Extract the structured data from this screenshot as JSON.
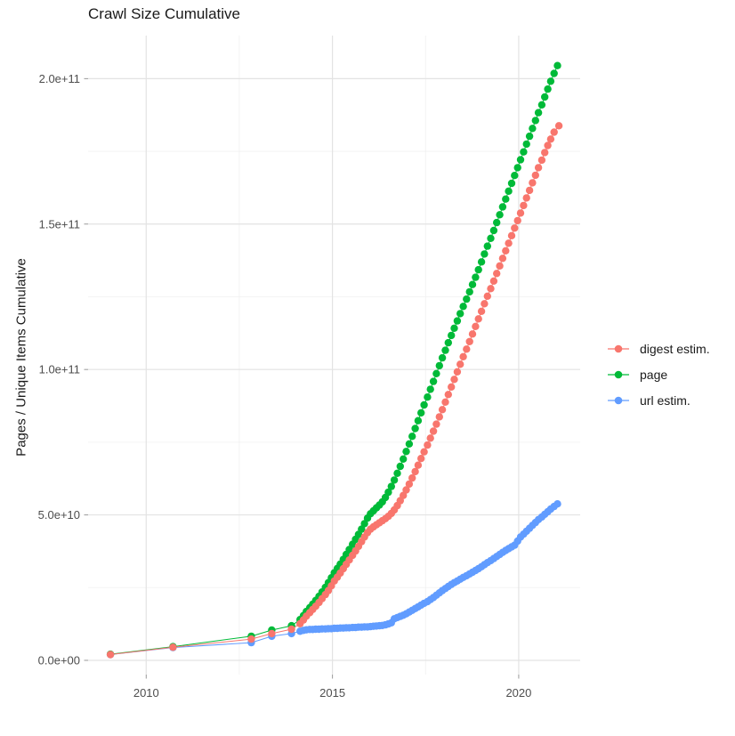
{
  "title": "Crawl Size Cumulative",
  "axes": {
    "y_label": "Pages / Unique Items Cumulative",
    "x_tick_labels": [
      "2010",
      "2015",
      "2020"
    ],
    "y_tick_labels": [
      "0.0e+00",
      "5.0e+10",
      "1.0e+11",
      "1.5e+11",
      "2.0e+11"
    ]
  },
  "legend": [
    {
      "label": "digest estim.",
      "color": "#F8766D"
    },
    {
      "label": "page",
      "color": "#00BA38"
    },
    {
      "label": "url estim.",
      "color": "#619CFF"
    }
  ],
  "chart_data": {
    "type": "scatter",
    "title": "Crawl Size Cumulative",
    "xlabel": "",
    "ylabel": "Pages / Unique Items Cumulative",
    "legend_position": "right",
    "grid": "on",
    "y_unit": 1000000000.0,
    "xlim": [
      2008.44,
      2021.65
    ],
    "ylim": [
      -4.9,
      214.8
    ],
    "x_major_ticks": [
      {
        "label": "2010",
        "value": 2010
      },
      {
        "label": "2015",
        "value": 2015
      },
      {
        "label": "2020",
        "value": 2020
      }
    ],
    "x_minor_ticks": [
      2012.5,
      2017.5
    ],
    "y_major_ticks": [
      {
        "label": "0.0e+00",
        "value": 0
      },
      {
        "label": "5.0e+10",
        "value": 50
      },
      {
        "label": "1.0e+11",
        "value": 100
      },
      {
        "label": "1.5e+11",
        "value": 150
      },
      {
        "label": "2.0e+11",
        "value": 200
      }
    ],
    "y_minor_ticks": [
      25,
      75,
      125,
      175
    ],
    "series": [
      {
        "name": "url estim.",
        "color": "#619CFF",
        "points": [
          [
            2009.04,
            2.0
          ],
          [
            2010.72,
            4.4
          ],
          [
            2012.82,
            6.1
          ],
          [
            2013.37,
            8.3
          ],
          [
            2013.9,
            9.2
          ],
          [
            2014.13,
            10.0
          ],
          [
            2014.22,
            10.3
          ],
          [
            2014.3,
            10.5
          ],
          [
            2014.39,
            10.6
          ],
          [
            2014.47,
            10.6
          ],
          [
            2014.55,
            10.7
          ],
          [
            2014.64,
            10.7
          ],
          [
            2014.72,
            10.8
          ],
          [
            2014.81,
            10.8
          ],
          [
            2014.89,
            10.9
          ],
          [
            2014.97,
            10.9
          ],
          [
            2015.05,
            11.0
          ],
          [
            2015.13,
            11.0
          ],
          [
            2015.21,
            11.1
          ],
          [
            2015.29,
            11.1
          ],
          [
            2015.37,
            11.2
          ],
          [
            2015.45,
            11.2
          ],
          [
            2015.54,
            11.3
          ],
          [
            2015.62,
            11.3
          ],
          [
            2015.7,
            11.4
          ],
          [
            2015.78,
            11.4
          ],
          [
            2015.86,
            11.5
          ],
          [
            2015.94,
            11.5
          ],
          [
            2016.02,
            11.6
          ],
          [
            2016.1,
            11.7
          ],
          [
            2016.18,
            11.8
          ],
          [
            2016.26,
            11.9
          ],
          [
            2016.34,
            12.0
          ],
          [
            2016.42,
            12.2
          ],
          [
            2016.5,
            12.5
          ],
          [
            2016.58,
            12.9
          ],
          [
            2016.66,
            14.3
          ],
          [
            2016.74,
            14.7
          ],
          [
            2016.82,
            15.1
          ],
          [
            2016.9,
            15.5
          ],
          [
            2016.98,
            16.0
          ],
          [
            2017.06,
            16.6
          ],
          [
            2017.14,
            17.2
          ],
          [
            2017.22,
            17.8
          ],
          [
            2017.3,
            18.4
          ],
          [
            2017.38,
            19.0
          ],
          [
            2017.46,
            19.6
          ],
          [
            2017.55,
            20.2
          ],
          [
            2017.63,
            20.9
          ],
          [
            2017.71,
            21.6
          ],
          [
            2017.79,
            22.4
          ],
          [
            2017.87,
            23.2
          ],
          [
            2017.95,
            24.0
          ],
          [
            2018.03,
            24.7
          ],
          [
            2018.11,
            25.4
          ],
          [
            2018.19,
            26.1
          ],
          [
            2018.27,
            26.7
          ],
          [
            2018.35,
            27.3
          ],
          [
            2018.43,
            27.9
          ],
          [
            2018.51,
            28.5
          ],
          [
            2018.6,
            29.1
          ],
          [
            2018.68,
            29.7
          ],
          [
            2018.76,
            30.3
          ],
          [
            2018.84,
            30.9
          ],
          [
            2018.92,
            31.5
          ],
          [
            2019.0,
            32.2
          ],
          [
            2019.08,
            32.9
          ],
          [
            2019.16,
            33.6
          ],
          [
            2019.25,
            34.3
          ],
          [
            2019.33,
            35.0
          ],
          [
            2019.41,
            35.7
          ],
          [
            2019.49,
            36.4
          ],
          [
            2019.57,
            37.1
          ],
          [
            2019.65,
            37.8
          ],
          [
            2019.73,
            38.4
          ],
          [
            2019.81,
            39.0
          ],
          [
            2019.89,
            39.6
          ],
          [
            2019.97,
            41.0
          ],
          [
            2020.05,
            42.4
          ],
          [
            2020.13,
            43.4
          ],
          [
            2020.21,
            44.4
          ],
          [
            2020.29,
            45.4
          ],
          [
            2020.37,
            46.4
          ],
          [
            2020.45,
            47.4
          ],
          [
            2020.53,
            48.4
          ],
          [
            2020.62,
            49.3
          ],
          [
            2020.7,
            50.2
          ],
          [
            2020.78,
            51.1
          ],
          [
            2020.86,
            52.0
          ],
          [
            2020.95,
            52.9
          ],
          [
            2021.04,
            53.8
          ]
        ]
      },
      {
        "name": "page",
        "color": "#00BA38",
        "points": [
          [
            2009.04,
            2.1
          ],
          [
            2010.72,
            4.7
          ],
          [
            2012.82,
            8.3
          ],
          [
            2013.37,
            10.4
          ],
          [
            2013.9,
            11.9
          ],
          [
            2014.13,
            14.0
          ],
          [
            2014.22,
            15.4
          ],
          [
            2014.3,
            16.8
          ],
          [
            2014.39,
            18.1
          ],
          [
            2014.47,
            19.3
          ],
          [
            2014.55,
            20.6
          ],
          [
            2014.64,
            22.0
          ],
          [
            2014.72,
            23.5
          ],
          [
            2014.81,
            25.1
          ],
          [
            2014.89,
            26.7
          ],
          [
            2014.97,
            28.4
          ],
          [
            2015.05,
            30.1
          ],
          [
            2015.13,
            31.6
          ],
          [
            2015.21,
            33.1
          ],
          [
            2015.29,
            34.7
          ],
          [
            2015.37,
            36.4
          ],
          [
            2015.45,
            38.1
          ],
          [
            2015.54,
            39.9
          ],
          [
            2015.62,
            41.6
          ],
          [
            2015.7,
            43.3
          ],
          [
            2015.78,
            45.1
          ],
          [
            2015.86,
            47.0
          ],
          [
            2015.94,
            48.9
          ],
          [
            2016.02,
            50.4
          ],
          [
            2016.1,
            51.4
          ],
          [
            2016.18,
            52.4
          ],
          [
            2016.26,
            53.4
          ],
          [
            2016.34,
            54.5
          ],
          [
            2016.42,
            56.0
          ],
          [
            2016.5,
            57.8
          ],
          [
            2016.58,
            59.8
          ],
          [
            2016.66,
            62.0
          ],
          [
            2016.74,
            64.3
          ],
          [
            2016.82,
            66.7
          ],
          [
            2016.9,
            69.2
          ],
          [
            2016.98,
            71.8
          ],
          [
            2017.06,
            74.4
          ],
          [
            2017.14,
            77.0
          ],
          [
            2017.22,
            79.7
          ],
          [
            2017.3,
            82.4
          ],
          [
            2017.38,
            85.1
          ],
          [
            2017.46,
            87.8
          ],
          [
            2017.55,
            90.5
          ],
          [
            2017.63,
            93.2
          ],
          [
            2017.71,
            95.9
          ],
          [
            2017.79,
            98.6
          ],
          [
            2017.87,
            101.3
          ],
          [
            2017.95,
            104.0
          ],
          [
            2018.03,
            106.6
          ],
          [
            2018.11,
            109.2
          ],
          [
            2018.19,
            111.7
          ],
          [
            2018.27,
            114.2
          ],
          [
            2018.35,
            116.7
          ],
          [
            2018.43,
            119.2
          ],
          [
            2018.51,
            121.7
          ],
          [
            2018.6,
            124.2
          ],
          [
            2018.68,
            126.7
          ],
          [
            2018.76,
            129.2
          ],
          [
            2018.84,
            131.7
          ],
          [
            2018.92,
            134.3
          ],
          [
            2019.0,
            137.0
          ],
          [
            2019.08,
            139.7
          ],
          [
            2019.16,
            142.4
          ],
          [
            2019.25,
            145.1
          ],
          [
            2019.33,
            147.8
          ],
          [
            2019.41,
            150.5
          ],
          [
            2019.49,
            153.2
          ],
          [
            2019.57,
            155.9
          ],
          [
            2019.65,
            158.6
          ],
          [
            2019.73,
            161.3
          ],
          [
            2019.81,
            164.0
          ],
          [
            2019.89,
            166.7
          ],
          [
            2019.97,
            169.4
          ],
          [
            2020.05,
            172.1
          ],
          [
            2020.13,
            174.8
          ],
          [
            2020.21,
            177.5
          ],
          [
            2020.29,
            180.2
          ],
          [
            2020.37,
            182.9
          ],
          [
            2020.45,
            185.6
          ],
          [
            2020.53,
            188.3
          ],
          [
            2020.62,
            191.0
          ],
          [
            2020.7,
            193.7
          ],
          [
            2020.78,
            196.4
          ],
          [
            2020.86,
            199.1
          ],
          [
            2020.95,
            201.8
          ],
          [
            2021.04,
            204.5
          ]
        ]
      },
      {
        "name": "digest estim.",
        "color": "#F8766D",
        "points": [
          [
            2009.04,
            2.0
          ],
          [
            2010.72,
            4.5
          ],
          [
            2012.82,
            7.3
          ],
          [
            2013.37,
            9.2
          ],
          [
            2013.9,
            10.7
          ],
          [
            2014.13,
            12.6
          ],
          [
            2014.22,
            13.9
          ],
          [
            2014.3,
            15.2
          ],
          [
            2014.39,
            16.4
          ],
          [
            2014.47,
            17.5
          ],
          [
            2014.55,
            18.6
          ],
          [
            2014.64,
            19.9
          ],
          [
            2014.72,
            21.2
          ],
          [
            2014.81,
            22.6
          ],
          [
            2014.89,
            24.0
          ],
          [
            2014.97,
            25.6
          ],
          [
            2015.05,
            27.3
          ],
          [
            2015.13,
            28.6
          ],
          [
            2015.21,
            30.0
          ],
          [
            2015.29,
            31.5
          ],
          [
            2015.37,
            33.0
          ],
          [
            2015.45,
            34.5
          ],
          [
            2015.54,
            36.1
          ],
          [
            2015.62,
            37.6
          ],
          [
            2015.7,
            39.2
          ],
          [
            2015.78,
            40.8
          ],
          [
            2015.86,
            42.4
          ],
          [
            2015.94,
            43.9
          ],
          [
            2016.02,
            45.1
          ],
          [
            2016.1,
            45.9
          ],
          [
            2016.18,
            46.6
          ],
          [
            2016.26,
            47.3
          ],
          [
            2016.34,
            48.0
          ],
          [
            2016.42,
            48.7
          ],
          [
            2016.5,
            49.5
          ],
          [
            2016.58,
            50.5
          ],
          [
            2016.66,
            51.7
          ],
          [
            2016.74,
            53.2
          ],
          [
            2016.82,
            54.9
          ],
          [
            2016.9,
            56.7
          ],
          [
            2016.98,
            58.6
          ],
          [
            2017.06,
            60.6
          ],
          [
            2017.14,
            62.7
          ],
          [
            2017.22,
            64.9
          ],
          [
            2017.3,
            67.1
          ],
          [
            2017.38,
            69.4
          ],
          [
            2017.46,
            71.7
          ],
          [
            2017.55,
            74.0
          ],
          [
            2017.63,
            76.4
          ],
          [
            2017.71,
            78.8
          ],
          [
            2017.79,
            81.2
          ],
          [
            2017.87,
            83.7
          ],
          [
            2017.95,
            86.2
          ],
          [
            2018.03,
            88.8
          ],
          [
            2018.11,
            91.4
          ],
          [
            2018.19,
            94.0
          ],
          [
            2018.27,
            96.6
          ],
          [
            2018.35,
            99.2
          ],
          [
            2018.43,
            101.8
          ],
          [
            2018.51,
            104.4
          ],
          [
            2018.6,
            107.0
          ],
          [
            2018.68,
            109.6
          ],
          [
            2018.76,
            112.2
          ],
          [
            2018.84,
            114.8
          ],
          [
            2018.92,
            117.4
          ],
          [
            2019.0,
            120.0
          ],
          [
            2019.08,
            122.6
          ],
          [
            2019.16,
            125.2
          ],
          [
            2019.25,
            127.8
          ],
          [
            2019.33,
            130.4
          ],
          [
            2019.41,
            133.0
          ],
          [
            2019.49,
            135.6
          ],
          [
            2019.57,
            138.2
          ],
          [
            2019.65,
            140.8
          ],
          [
            2019.73,
            143.4
          ],
          [
            2019.81,
            146.0
          ],
          [
            2019.89,
            148.6
          ],
          [
            2019.97,
            151.2
          ],
          [
            2020.05,
            153.8
          ],
          [
            2020.13,
            156.4
          ],
          [
            2020.21,
            159.0
          ],
          [
            2020.29,
            161.6
          ],
          [
            2020.37,
            164.2
          ],
          [
            2020.45,
            166.8
          ],
          [
            2020.53,
            169.4
          ],
          [
            2020.62,
            172.0
          ],
          [
            2020.7,
            174.6
          ],
          [
            2020.78,
            177.0
          ],
          [
            2020.86,
            179.2
          ],
          [
            2020.95,
            181.6
          ],
          [
            2021.08,
            183.8
          ]
        ]
      }
    ]
  }
}
